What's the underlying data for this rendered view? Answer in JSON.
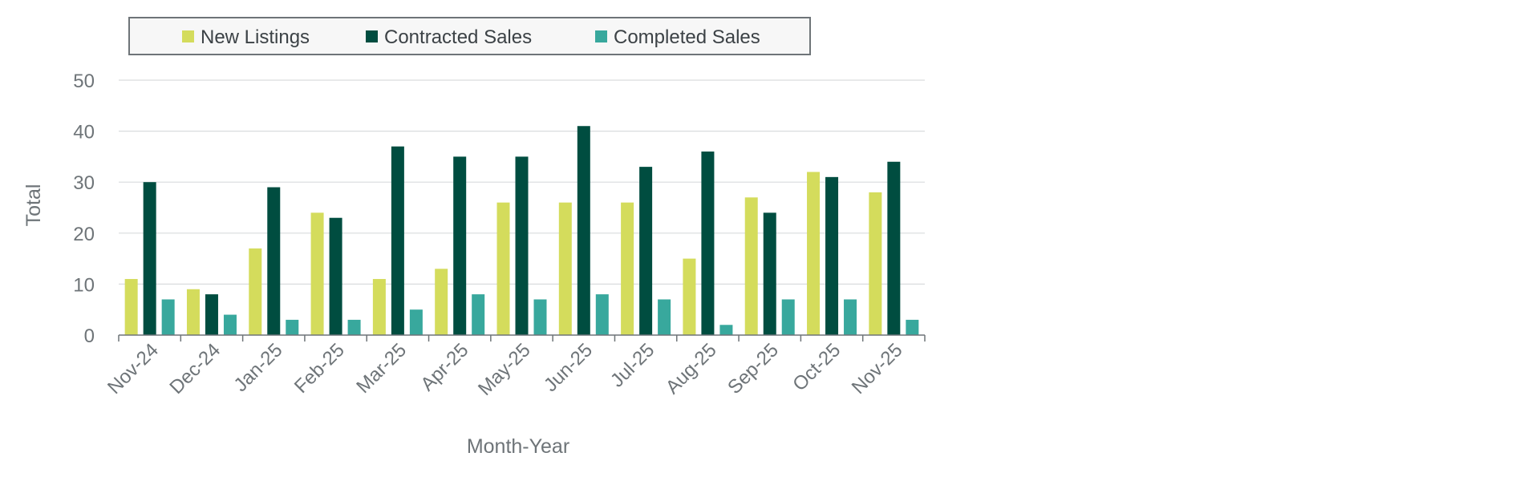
{
  "colors": {
    "new_listings": "#d4dc5c",
    "contracted_sales": "#004d40",
    "completed_sales": "#38a89d",
    "grid": "#d9dcde",
    "axis": "#6e7478",
    "text": "#6e7478",
    "legend_border": "#6e7478",
    "legend_bg": "#f7f7f7"
  },
  "chart_data": {
    "type": "bar",
    "title": "",
    "xlabel": "Month-Year",
    "ylabel": "Total",
    "ylim": [
      0,
      50
    ],
    "yticks": [
      0,
      10,
      20,
      30,
      40,
      50
    ],
    "grid": true,
    "legend_position": "top",
    "categories": [
      "Nov-24",
      "Dec-24",
      "Jan-25",
      "Feb-25",
      "Mar-25",
      "Apr-25",
      "May-25",
      "Jun-25",
      "Jul-25",
      "Aug-25",
      "Sep-25",
      "Oct-25",
      "Nov-25"
    ],
    "series": [
      {
        "name": "New Listings",
        "color_key": "new_listings",
        "values": [
          11,
          9,
          17,
          24,
          11,
          13,
          26,
          26,
          26,
          15,
          27,
          32,
          28
        ]
      },
      {
        "name": "Contracted Sales",
        "color_key": "contracted_sales",
        "values": [
          30,
          8,
          29,
          23,
          37,
          35,
          35,
          41,
          33,
          36,
          24,
          31,
          34
        ]
      },
      {
        "name": "Completed Sales",
        "color_key": "completed_sales",
        "values": [
          7,
          4,
          3,
          3,
          5,
          8,
          7,
          8,
          7,
          2,
          7,
          7,
          3
        ]
      }
    ]
  }
}
